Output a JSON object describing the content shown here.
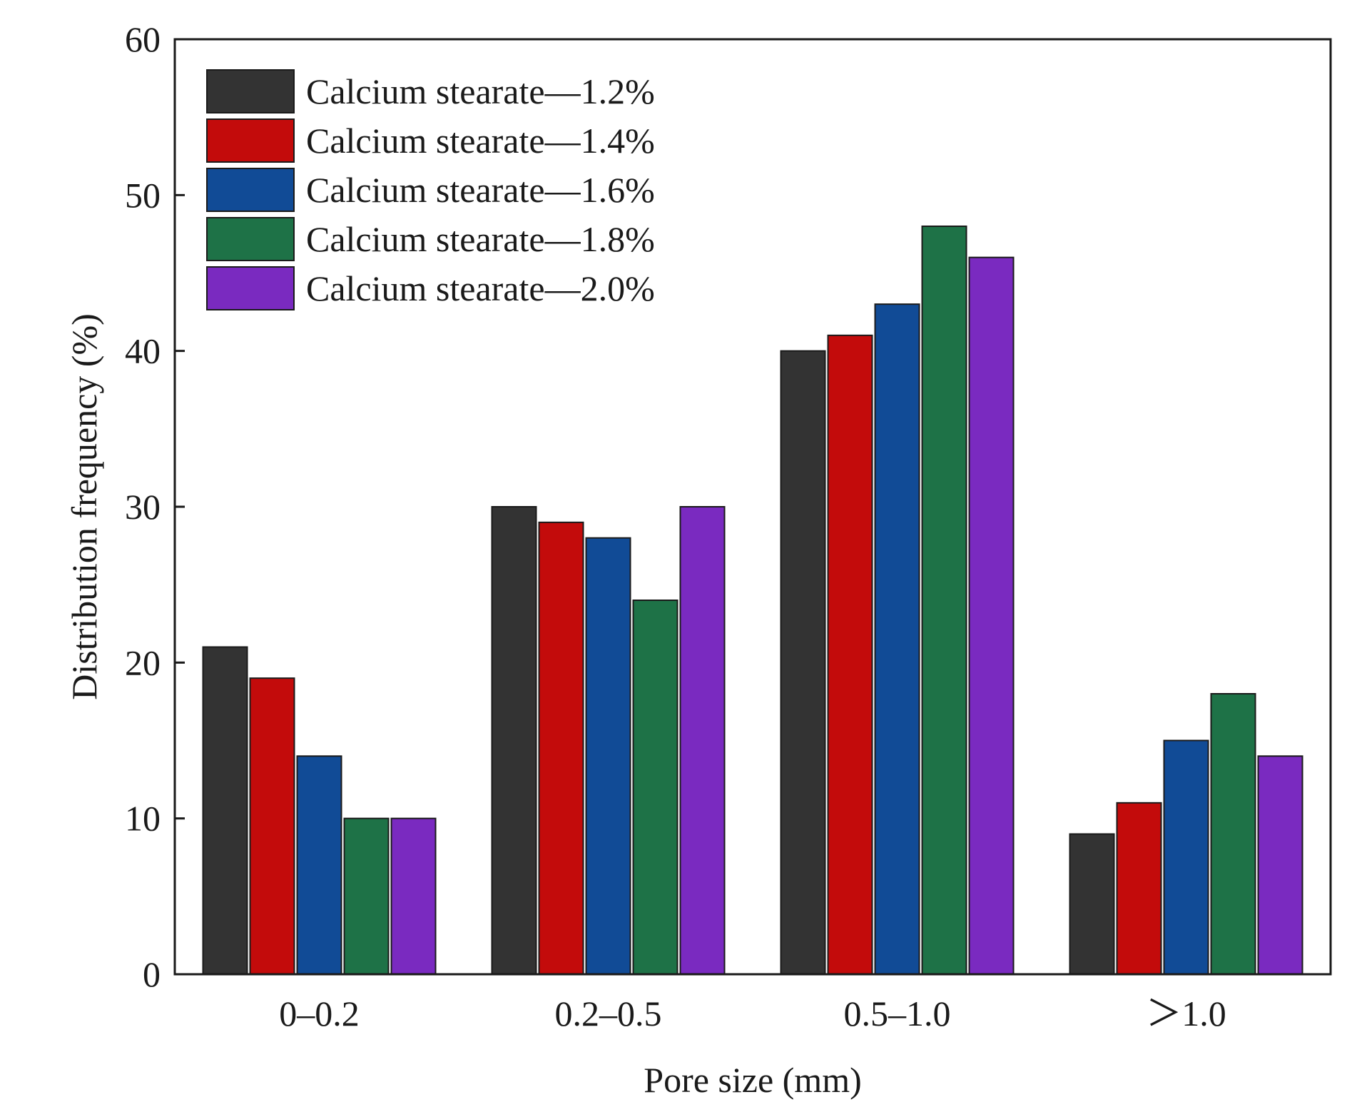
{
  "chart_data": {
    "type": "bar",
    "title": "",
    "xlabel": "Pore size (mm)",
    "ylabel": "Distribution frequency (%)",
    "categories": [
      "0–0.2",
      "0.2–0.5",
      "0.5–1.0",
      "＞1.0"
    ],
    "ylim": [
      0,
      60
    ],
    "yticks": [
      0,
      10,
      20,
      30,
      40,
      50,
      60
    ],
    "grid": false,
    "legend_position": "top-left",
    "series": [
      {
        "name": "Calcium stearate—1.2%",
        "color": "#333333",
        "values": [
          21,
          30,
          40,
          9
        ]
      },
      {
        "name": "Calcium stearate—1.4%",
        "color": "#c30b0b",
        "values": [
          19,
          29,
          41,
          11
        ]
      },
      {
        "name": "Calcium stearate—1.6%",
        "color": "#114b96",
        "values": [
          14,
          28,
          43,
          15
        ]
      },
      {
        "name": "Calcium stearate—1.8%",
        "color": "#1e7247",
        "values": [
          10,
          24,
          48,
          18
        ]
      },
      {
        "name": "Calcium stearate—2.0%",
        "color": "#7a2ac0",
        "values": [
          10,
          30,
          46,
          14
        ]
      }
    ]
  }
}
